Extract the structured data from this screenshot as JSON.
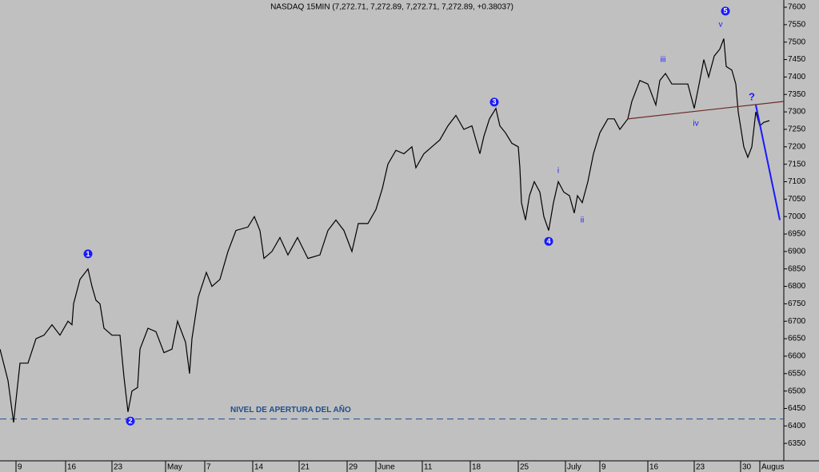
{
  "chart_data": {
    "type": "line",
    "title": "NASDAQ 15MIN (7,272.71, 7,272.89, 7,272.71, 7,272.89, +0.38037)",
    "x": [
      0,
      10,
      17,
      25,
      35,
      45,
      55,
      65,
      75,
      85,
      90,
      92,
      100,
      110,
      115,
      120,
      125,
      130,
      140,
      150,
      155,
      160,
      165,
      172,
      175,
      185,
      195,
      205,
      215,
      222,
      232,
      237,
      240,
      248,
      258,
      265,
      275,
      285,
      295,
      310,
      318,
      325,
      330,
      340,
      350,
      360,
      372,
      385,
      400,
      410,
      420,
      430,
      440,
      448,
      460,
      470,
      478,
      485,
      495,
      505,
      515,
      520,
      530,
      540,
      550,
      560,
      570,
      580,
      590,
      600,
      605,
      612,
      620,
      625,
      632,
      640,
      648,
      650,
      652,
      657,
      662,
      668,
      675,
      680,
      686,
      692,
      698,
      705,
      712,
      718,
      722,
      728,
      735,
      742,
      750,
      760,
      768,
      775,
      785,
      790,
      800,
      810,
      820,
      825,
      832,
      840,
      850,
      860,
      868,
      875,
      880,
      886,
      893,
      900,
      905,
      908,
      915,
      920,
      923,
      930,
      935,
      940,
      945,
      950,
      955,
      962
    ],
    "series": [
      {
        "name": "NASDAQ",
        "color": "#000000",
        "values": [
          6620,
          6530,
          6410,
          6580,
          6580,
          6650,
          6660,
          6690,
          6660,
          6700,
          6690,
          6750,
          6820,
          6850,
          6800,
          6760,
          6750,
          6680,
          6660,
          6660,
          6540,
          6440,
          6500,
          6510,
          6620,
          6680,
          6670,
          6610,
          6620,
          6700,
          6640,
          6550,
          6650,
          6770,
          6840,
          6800,
          6820,
          6900,
          6960,
          6970,
          7000,
          6960,
          6880,
          6900,
          6940,
          6890,
          6940,
          6880,
          6890,
          6960,
          6990,
          6960,
          6900,
          6980,
          6980,
          7020,
          7080,
          7150,
          7190,
          7180,
          7200,
          7140,
          7180,
          7200,
          7220,
          7260,
          7290,
          7250,
          7260,
          7180,
          7230,
          7280,
          7310,
          7260,
          7240,
          7210,
          7200,
          7140,
          7040,
          6990,
          7060,
          7100,
          7070,
          7000,
          6960,
          7040,
          7100,
          7070,
          7060,
          7010,
          7060,
          7040,
          7100,
          7180,
          7240,
          7280,
          7280,
          7250,
          7280,
          7330,
          7390,
          7380,
          7320,
          7390,
          7410,
          7380,
          7380,
          7380,
          7310,
          7390,
          7450,
          7400,
          7460,
          7480,
          7510,
          7430,
          7420,
          7380,
          7300,
          7200,
          7170,
          7200,
          7300,
          7260,
          7270,
          7275
        ]
      }
    ],
    "xlim": [
      0,
      980
    ],
    "ylim": [
      6300,
      7620
    ],
    "yticks": [
      6350,
      6400,
      6450,
      6500,
      6550,
      6600,
      6650,
      6700,
      6750,
      6800,
      6850,
      6900,
      6950,
      7000,
      7050,
      7100,
      7150,
      7200,
      7250,
      7300,
      7350,
      7400,
      7450,
      7500,
      7550,
      7600
    ],
    "xticks": [
      {
        "value": 20,
        "label": "9"
      },
      {
        "value": 82,
        "label": "16"
      },
      {
        "value": 140,
        "label": "23"
      },
      {
        "value": 207,
        "label": "May"
      },
      {
        "value": 256,
        "label": "7"
      },
      {
        "value": 316,
        "label": "14"
      },
      {
        "value": 374,
        "label": "21"
      },
      {
        "value": 434,
        "label": "29"
      },
      {
        "value": 470,
        "label": "June"
      },
      {
        "value": 528,
        "label": "11"
      },
      {
        "value": 588,
        "label": "18"
      },
      {
        "value": 648,
        "label": "25"
      },
      {
        "value": 707,
        "label": "July"
      },
      {
        "value": 750,
        "label": "9"
      },
      {
        "value": 810,
        "label": "16"
      },
      {
        "value": 868,
        "label": "23"
      },
      {
        "value": 926,
        "label": "30"
      },
      {
        "value": 950,
        "label": "Augus"
      }
    ],
    "reference_line": {
      "value": 6420,
      "label": "NIVEL DE APERTURA DEL AÑO",
      "label_x": 288,
      "color": "#1f4e8c"
    },
    "lines": [
      {
        "x": [
          785,
          980
        ],
        "y": [
          7280,
          7330
        ],
        "color": "#6b2a2a"
      },
      {
        "x": [
          945,
          975
        ],
        "y": [
          7320,
          6990
        ],
        "color": "#1a1aff"
      }
    ],
    "annotations": [
      {
        "text": "1",
        "x": 110,
        "y": 6893,
        "style": "circle"
      },
      {
        "text": "2",
        "x": 163,
        "y": 6414,
        "style": "circle"
      },
      {
        "text": "3",
        "x": 618,
        "y": 7328,
        "style": "circle"
      },
      {
        "text": "4",
        "x": 686,
        "y": 6929,
        "style": "circle"
      },
      {
        "text": "5",
        "x": 907,
        "y": 7589,
        "style": "circle"
      },
      {
        "text": "i",
        "x": 698,
        "y": 7131,
        "style": "plain"
      },
      {
        "text": "ii",
        "x": 728,
        "y": 6989,
        "style": "plain"
      },
      {
        "text": "iii",
        "x": 829,
        "y": 7449,
        "style": "plain"
      },
      {
        "text": "iv",
        "x": 870,
        "y": 7266,
        "style": "plain"
      },
      {
        "text": "v",
        "x": 901,
        "y": 7550,
        "style": "plain"
      },
      {
        "text": "?",
        "x": 940,
        "y": 7341,
        "style": "bold"
      }
    ]
  }
}
